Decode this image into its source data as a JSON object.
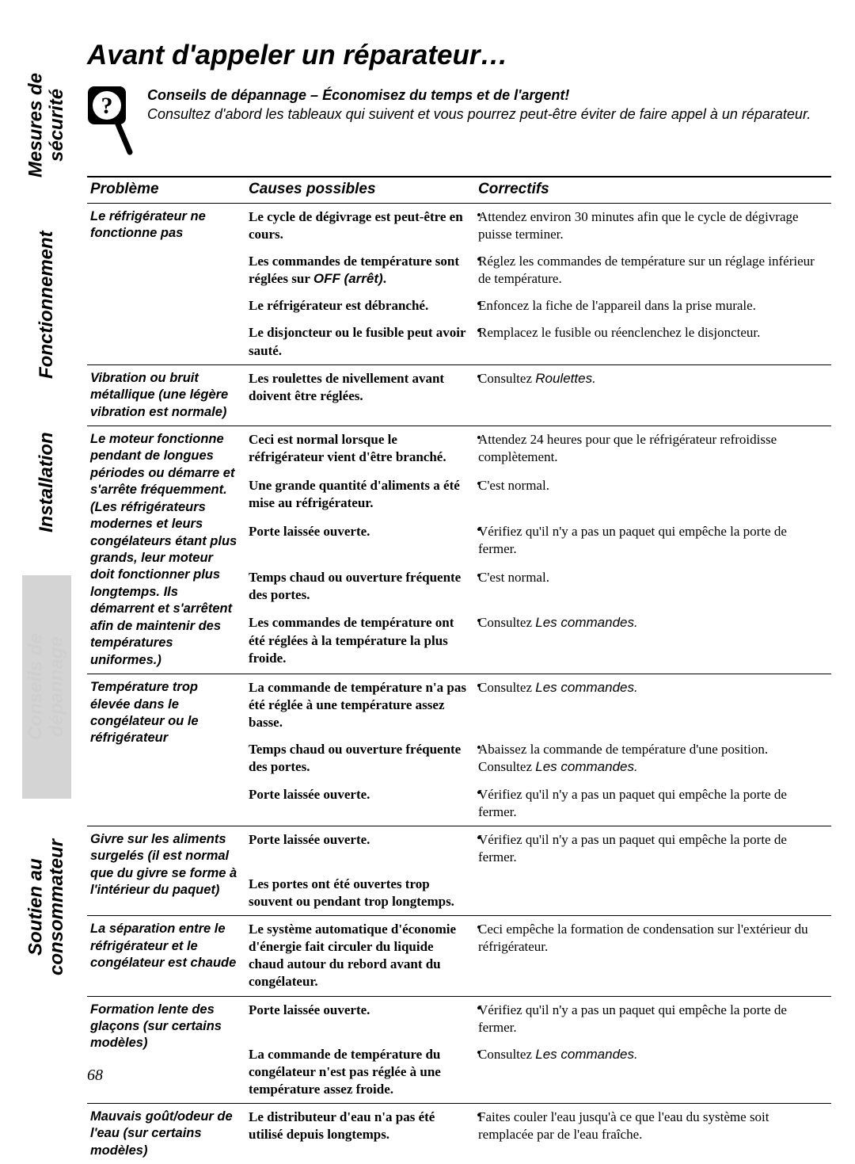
{
  "tabs": {
    "t1": "Mesures de sécurité",
    "t2": "Fonctionnement",
    "t3": "Installation",
    "t4": "Conseils de dépannage",
    "t5": "Soutien au consommateur"
  },
  "title": "Avant d'appeler un réparateur…",
  "intro_bold": "Conseils de dépannage – Économisez du temps et de l'argent!",
  "intro_rest": "Consultez d'abord les tableaux qui suivent et vous pourrez peut-être éviter de faire appel à un réparateur.",
  "headers": {
    "problem": "Problème",
    "causes": "Causes possibles",
    "correctifs": "Correctifs"
  },
  "rows": [
    {
      "problem": "Le réfrigérateur ne fonctionne pas",
      "entries": [
        {
          "cause": "Le cycle de dégivrage est peut-être en cours.",
          "fix": "Attendez environ 30 minutes afin que le cycle de dégivrage puisse terminer."
        },
        {
          "cause_html": "Les commandes de température sont réglées sur <span class='hidden-bold-off'>OFF (arrêt)</span>.",
          "fix": "Réglez les commandes de température sur un réglage inférieur de température."
        },
        {
          "cause": "Le réfrigérateur est débranché.",
          "fix": "Enfoncez la fiche de l'appareil dans la prise murale."
        },
        {
          "cause": "Le disjoncteur ou le fusible peut avoir sauté.",
          "fix": "Remplacez le fusible ou réenclenchez le disjoncteur."
        }
      ]
    },
    {
      "problem": "Vibration ou bruit métallique (une légère vibration est normale)",
      "entries": [
        {
          "cause": "Les roulettes de nivellement avant doivent être réglées.",
          "fix_html": "Consultez <span class='ital'>Roulettes.</span>"
        }
      ]
    },
    {
      "problem": "Le moteur fonctionne pendant de longues périodes ou démarre et s'arrête fréquemment. (Les réfrigérateurs modernes et leurs congélateurs étant plus grands, leur moteur doit fonctionner plus longtemps. Ils démarrent et s'arrêtent afin de maintenir des températures uniformes.)",
      "entries": [
        {
          "cause": "Ceci est normal lorsque le réfrigérateur vient d'être branché.",
          "fix": "Attendez 24 heures pour que le réfrigérateur refroidisse complètement."
        },
        {
          "cause": "Une grande quantité d'aliments a été mise au réfrigérateur.",
          "fix": "C'est normal."
        },
        {
          "cause": "Porte laissée ouverte.",
          "fix": "Vérifiez qu'il n'y a pas un paquet qui empêche la porte de fermer."
        },
        {
          "cause": "Temps chaud ou ouverture fréquente des portes.",
          "fix": "C'est normal."
        },
        {
          "cause": "Les commandes de température ont été réglées à la température la plus froide.",
          "fix_html": "Consultez <span class='ital'>Les commandes.</span>"
        }
      ]
    },
    {
      "problem": "Température trop élevée dans le congélateur ou le réfrigérateur",
      "entries": [
        {
          "cause": "La commande de température n'a pas été réglée à une température assez basse.",
          "fix_html": "Consultez <span class='ital'>Les commandes.</span>"
        },
        {
          "cause": "Temps chaud ou ouverture fréquente des portes.",
          "fix_html": "Abaissez la commande de température d'une position. Consultez <span class='ital'>Les commandes.</span>"
        },
        {
          "cause": "Porte laissée ouverte.",
          "fix": "Vérifiez qu'il n'y a pas un paquet qui empêche la porte de fermer."
        }
      ]
    },
    {
      "problem": "Givre sur les aliments surgelés (il est normal que du givre se forme à l'intérieur du paquet)",
      "entries": [
        {
          "cause": "Porte laissée ouverte.",
          "fix": "Vérifiez qu'il n'y a pas un paquet qui empêche la porte de fermer."
        },
        {
          "cause": "Les portes ont été ouvertes trop souvent ou pendant trop longtemps.",
          "fix": ""
        }
      ]
    },
    {
      "problem": "La séparation entre le réfrigérateur et le congélateur est chaude",
      "entries": [
        {
          "cause": "Le système automatique d'économie d'énergie fait circuler du liquide chaud autour du rebord avant du congélateur.",
          "fix": "Ceci empêche la formation de condensation sur l'extérieur du réfrigérateur."
        }
      ]
    },
    {
      "problem": "Formation lente des glaçons (sur certains modèles)",
      "entries": [
        {
          "cause": "Porte laissée ouverte.",
          "fix": "Vérifiez qu'il n'y a pas un paquet qui empêche la porte de fermer."
        },
        {
          "cause": "La commande de température du congélateur n'est pas réglée à une température assez froide.",
          "fix_html": "Consultez <span class='ital'>Les commandes.</span>"
        }
      ]
    },
    {
      "problem": "Mauvais goût/odeur de l'eau (sur certains modèles)",
      "entries": [
        {
          "cause": "Le distributeur d'eau n'a pas été utilisé depuis longtemps.",
          "fix": "Faites couler l'eau jusqu'à ce que l'eau du système soit remplacée par de l'eau fraîche."
        }
      ]
    }
  ],
  "page_number": "68"
}
